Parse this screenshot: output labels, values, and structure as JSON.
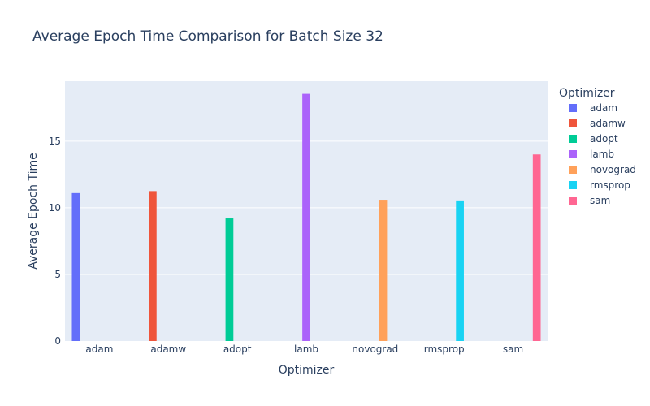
{
  "chart_data": {
    "type": "bar",
    "title": "Average Epoch Time Comparison for Batch Size 32",
    "xlabel": "Optimizer",
    "ylabel": "Average Epoch Time",
    "categories": [
      "adam",
      "adamw",
      "adopt",
      "lamb",
      "novograd",
      "rmsprop",
      "sam"
    ],
    "ylim": [
      0,
      19.5
    ],
    "yticks": [
      0,
      5,
      10,
      15
    ],
    "grid": true,
    "legend": {
      "title": "Optimizer",
      "placement": "right"
    },
    "series": [
      {
        "name": "adam",
        "color": "#636efa",
        "values": [
          11.1,
          null,
          null,
          null,
          null,
          null,
          null
        ]
      },
      {
        "name": "adamw",
        "color": "#EF553B",
        "values": [
          null,
          11.25,
          null,
          null,
          null,
          null,
          null
        ]
      },
      {
        "name": "adopt",
        "color": "#00cc96",
        "values": [
          null,
          null,
          9.2,
          null,
          null,
          null,
          null
        ]
      },
      {
        "name": "lamb",
        "color": "#ab63fa",
        "values": [
          null,
          null,
          null,
          18.55,
          null,
          null,
          null
        ]
      },
      {
        "name": "novograd",
        "color": "#FFA15A",
        "values": [
          null,
          null,
          null,
          null,
          10.6,
          null,
          null
        ]
      },
      {
        "name": "rmsprop",
        "color": "#19d3f3",
        "values": [
          null,
          null,
          null,
          null,
          null,
          10.55,
          null
        ]
      },
      {
        "name": "sam",
        "color": "#FF6692",
        "values": [
          null,
          null,
          null,
          null,
          null,
          null,
          14.0
        ]
      }
    ]
  }
}
